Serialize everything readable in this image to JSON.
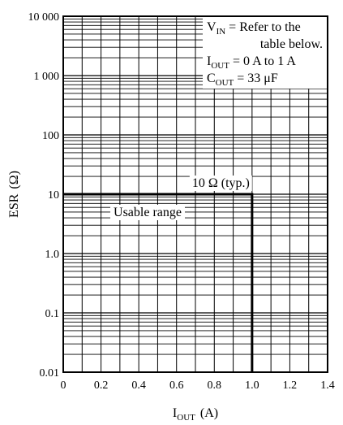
{
  "chart_data": {
    "type": "line",
    "title": "",
    "xlabel": {
      "main": "I",
      "sub": "OUT",
      "unit": "(A)"
    },
    "ylabel": {
      "main": "ESR",
      "unit": "(Ω)"
    },
    "xlim": [
      0,
      1.4
    ],
    "ylim": [
      0.01,
      10000
    ],
    "yscale": "log",
    "grid": true,
    "x_ticks": [
      "0",
      "0.2",
      "0.4",
      "0.6",
      "0.8",
      "1.0",
      "1.2",
      "1.4"
    ],
    "y_ticks": [
      {
        "value": 0.01,
        "label": "0.01"
      },
      {
        "value": 0.1,
        "label": "0.1"
      },
      {
        "value": 1,
        "label": "1.0"
      },
      {
        "value": 10,
        "label": "10"
      },
      {
        "value": 100,
        "label": "100"
      },
      {
        "value": 1000,
        "label": "1 000"
      },
      {
        "value": 10000,
        "label": "10 000"
      }
    ],
    "boundary": {
      "points": [
        [
          0,
          10
        ],
        [
          1.0,
          10
        ],
        [
          1.0,
          0.01
        ]
      ],
      "label": "10 Ω (typ.)",
      "label_position": "above-horizontal"
    },
    "region_label": "Usable range",
    "conditions_box": {
      "position": "top-right",
      "lines": [
        {
          "main": "V",
          "sub": "IN",
          "rest": " = Refer to the"
        },
        {
          "main": "",
          "sub": "",
          "rest": "table below."
        },
        {
          "main": "I",
          "sub": "OUT",
          "rest": " = 0 A to 1 A"
        },
        {
          "main": "C",
          "sub": "OUT",
          "rest": " = 33 μF"
        }
      ]
    }
  }
}
